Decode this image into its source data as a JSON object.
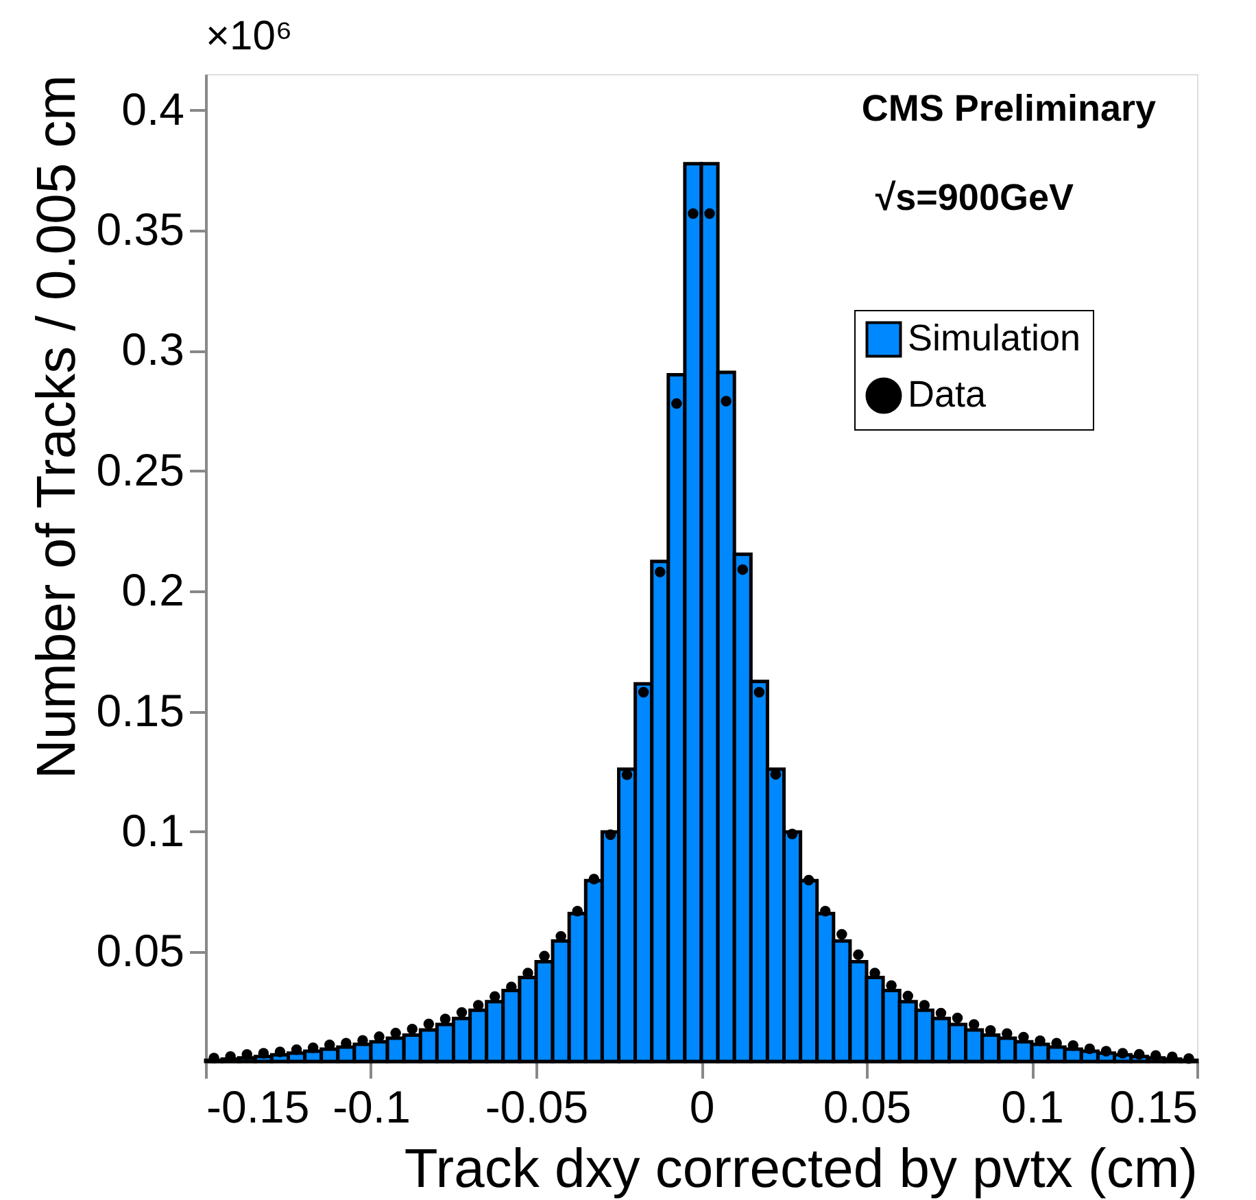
{
  "chart_data": {
    "type": "histogram",
    "xlabel": "Track dxy corrected by pvtx (cm)",
    "ylabel": "Number of Tracks / 0.005 cm",
    "annotations": [
      "×10⁶",
      "CMS Preliminary",
      "√s=900GeV"
    ],
    "bins": [
      -0.15,
      -0.145,
      -0.14,
      -0.135,
      -0.13,
      -0.125,
      -0.12,
      -0.115,
      -0.11,
      -0.105,
      -0.1,
      -0.095,
      -0.09,
      -0.085,
      -0.08,
      -0.075,
      -0.07,
      -0.065,
      -0.06,
      -0.055,
      -0.05,
      -0.045,
      -0.04,
      -0.035,
      -0.03,
      -0.025,
      -0.02,
      -0.015,
      -0.01,
      -0.005,
      0,
      0.005,
      0.01,
      0.015,
      0.02,
      0.025,
      0.03,
      0.035,
      0.04,
      0.045,
      0.05,
      0.055,
      0.06,
      0.065,
      0.07,
      0.075,
      0.08,
      0.085,
      0.09,
      0.095,
      0.1,
      0.105,
      0.11,
      0.115,
      0.12,
      0.125,
      0.13,
      0.135,
      0.14,
      0.145,
      0.15
    ],
    "series": [
      {
        "name": "Simulation",
        "color": "#0088ff",
        "values": [
          0.005,
          0.0055,
          0.006,
          0.0066,
          0.0073,
          0.008,
          0.0088,
          0.0096,
          0.0105,
          0.0116,
          0.0127,
          0.0142,
          0.0155,
          0.0176,
          0.0199,
          0.0224,
          0.0258,
          0.0294,
          0.034,
          0.0394,
          0.046,
          0.0546,
          0.066,
          0.0797,
          0.0999,
          0.126,
          0.1615,
          0.2124,
          0.29,
          0.3777,
          0.3777,
          0.291,
          0.2154,
          0.1625,
          0.126,
          0.0999,
          0.0797,
          0.066,
          0.0546,
          0.046,
          0.0394,
          0.034,
          0.0294,
          0.0258,
          0.0224,
          0.0199,
          0.0176,
          0.0155,
          0.0142,
          0.0127,
          0.0116,
          0.0105,
          0.0096,
          0.0088,
          0.008,
          0.0073,
          0.0066,
          0.006,
          0.0055,
          0.005
        ]
      },
      {
        "name": "Data",
        "type": "scatter",
        "color": "#000000",
        "x": [
          -0.1475,
          -0.1425,
          -0.1375,
          -0.1325,
          -0.1275,
          -0.1225,
          -0.1175,
          -0.1125,
          -0.1075,
          -0.1025,
          -0.0975,
          -0.0925,
          -0.0875,
          -0.0825,
          -0.0775,
          -0.0725,
          -0.0675,
          -0.0625,
          -0.0575,
          -0.0525,
          -0.0475,
          -0.0425,
          -0.0375,
          -0.0325,
          -0.0275,
          -0.0225,
          -0.0175,
          -0.0125,
          -0.0075,
          -0.0025,
          0.0025,
          0.0075,
          0.0125,
          0.0175,
          0.0225,
          0.0275,
          0.0325,
          0.0375,
          0.0425,
          0.0475,
          0.0525,
          0.0575,
          0.0625,
          0.0675,
          0.0725,
          0.0775,
          0.0825,
          0.0875,
          0.0925,
          0.0975,
          0.1025,
          0.1075,
          0.1125,
          0.1175,
          0.1225,
          0.1275,
          0.1325,
          0.1375,
          0.1425,
          0.1475
        ],
        "values": [
          0.0059,
          0.0066,
          0.0074,
          0.0079,
          0.0085,
          0.0094,
          0.0102,
          0.0114,
          0.0121,
          0.0133,
          0.0148,
          0.0163,
          0.018,
          0.0201,
          0.0222,
          0.0249,
          0.0279,
          0.0315,
          0.0355,
          0.0413,
          0.0483,
          0.0565,
          0.067,
          0.0803,
          0.0988,
          0.1237,
          0.158,
          0.208,
          0.278,
          0.357,
          0.357,
          0.279,
          0.209,
          0.158,
          0.1239,
          0.0991,
          0.0799,
          0.067,
          0.0574,
          0.0489,
          0.0413,
          0.0361,
          0.0317,
          0.0279,
          0.0246,
          0.0226,
          0.0199,
          0.0174,
          0.0161,
          0.0146,
          0.0131,
          0.0121,
          0.0111,
          0.0098,
          0.0088,
          0.0079,
          0.0075,
          0.007,
          0.0064,
          0.0057
        ]
      }
    ],
    "xlim": [
      -0.15,
      0.15
    ],
    "ylim": [
      0.0045,
      0.415
    ],
    "xticks": [
      -0.15,
      -0.1,
      -0.05,
      0,
      0.05,
      0.1,
      0.15
    ],
    "yticks": [
      0.05,
      0.1,
      0.15,
      0.2,
      0.25,
      0.3,
      0.35,
      0.4
    ],
    "legend": "top right",
    "grid": false,
    "marker": "circle"
  }
}
